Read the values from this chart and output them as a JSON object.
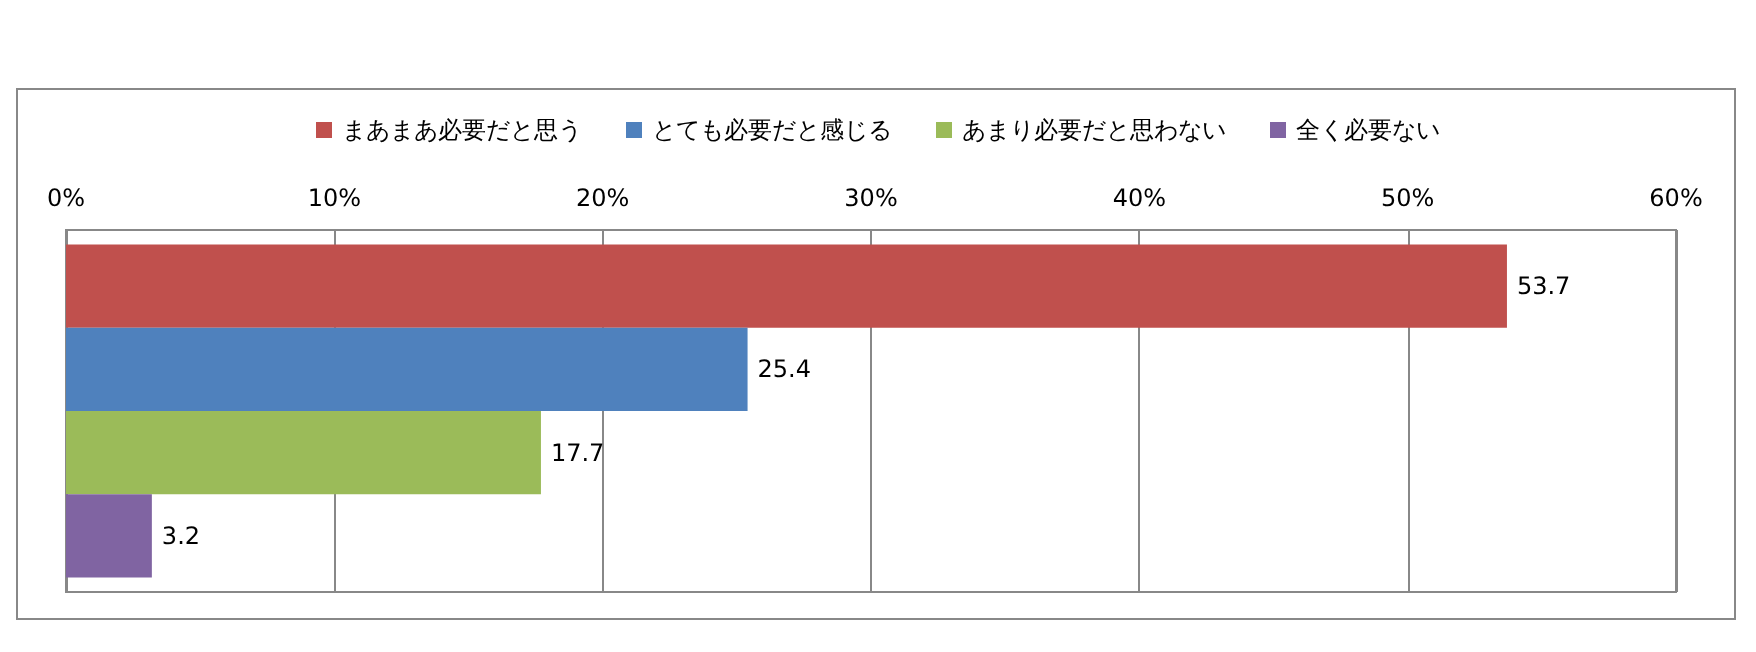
{
  "chart_data": {
    "type": "bar",
    "orientation": "horizontal",
    "categories": [
      null
    ],
    "series": [
      {
        "name": "まあまあ必要だと思う",
        "color": "#c0504d",
        "values": [
          53.7
        ]
      },
      {
        "name": "とても必要だと感じる",
        "color": "#4f81bd",
        "values": [
          25.4
        ]
      },
      {
        "name": "あまり必要だと思わない",
        "color": "#9bbb59",
        "values": [
          17.7
        ]
      },
      {
        "name": "全く必要ない",
        "color": "#8064a2",
        "values": [
          3.2
        ]
      }
    ],
    "xlim": [
      0,
      60
    ],
    "xticks": [
      {
        "value": 0,
        "label": "0%"
      },
      {
        "value": 10,
        "label": "10%"
      },
      {
        "value": 20,
        "label": "20%"
      },
      {
        "value": 30,
        "label": "30%"
      },
      {
        "value": 40,
        "label": "40%"
      },
      {
        "value": 50,
        "label": "50%"
      },
      {
        "value": 60,
        "label": "60%"
      }
    ],
    "grid": "x",
    "legend": "top",
    "data_labels": true
  }
}
